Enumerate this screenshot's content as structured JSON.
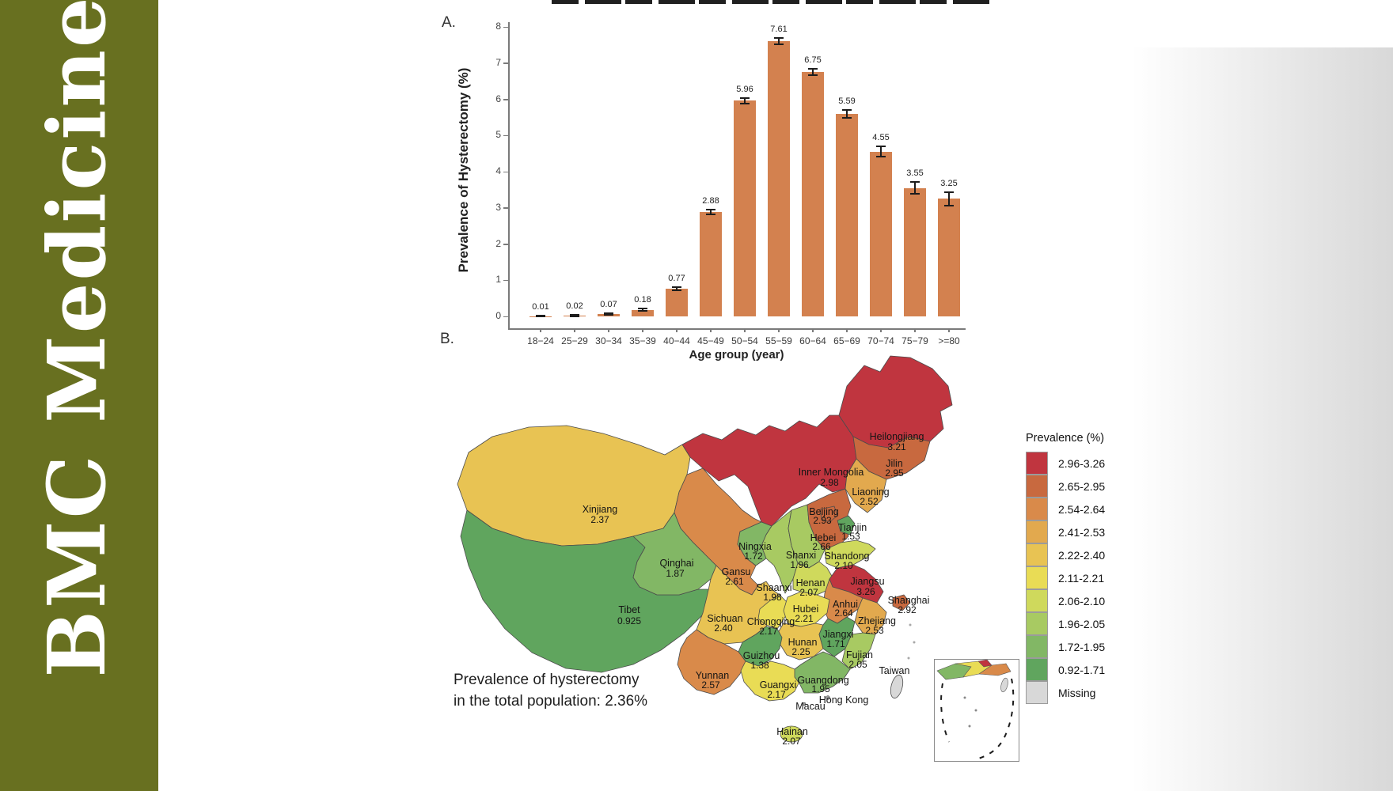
{
  "brand": {
    "name": "BMC Medicine",
    "bg_color": "#687020",
    "text_color": "#ffffff"
  },
  "figure": {
    "panel_a_label": "A.",
    "panel_b_label": "B.",
    "caption_line1": "Prevalence of hysterectomy",
    "caption_line2": "in the total population: 2.36%"
  },
  "chart_data": [
    {
      "type": "bar",
      "title": "",
      "xlabel": "Age group (year)",
      "ylabel": "Prevalence of Hysterectomy (%)",
      "ylim": [
        0,
        8
      ],
      "yticks": [
        0,
        1,
        2,
        3,
        4,
        5,
        6,
        7,
        8
      ],
      "grid": false,
      "bar_color": "#d3814f",
      "categories": [
        "18−24",
        "25−29",
        "30−34",
        "35−39",
        "40−44",
        "45−49",
        "50−54",
        "55−59",
        "60−64",
        "65−69",
        "70−74",
        "75−79",
        ">=80"
      ],
      "values": [
        0.01,
        0.02,
        0.07,
        0.18,
        0.77,
        2.88,
        5.96,
        7.61,
        6.75,
        5.59,
        4.55,
        3.55,
        3.25
      ],
      "value_labels": [
        "0.01",
        "0.02",
        "0.07",
        "0.18",
        "0.77",
        "2.88",
        "5.96",
        "7.61",
        "6.75",
        "5.59",
        "4.55",
        "3.55",
        "3.25"
      ],
      "errors": [
        0.01,
        0.015,
        0.02,
        0.03,
        0.04,
        0.06,
        0.07,
        0.09,
        0.09,
        0.11,
        0.14,
        0.16,
        0.18
      ]
    },
    {
      "type": "choropleth-map",
      "region": "China",
      "legend_title": "Prevalence (%)",
      "legend": [
        {
          "range": "2.96-3.26",
          "band": 0
        },
        {
          "range": "2.65-2.95",
          "band": 1
        },
        {
          "range": "2.54-2.64",
          "band": 2
        },
        {
          "range": "2.41-2.53",
          "band": 3
        },
        {
          "range": "2.22-2.40",
          "band": 4
        },
        {
          "range": "2.11-2.21",
          "band": 5
        },
        {
          "range": "2.06-2.10",
          "band": 6
        },
        {
          "range": "1.96-2.05",
          "band": 7
        },
        {
          "range": "1.72-1.95",
          "band": 8
        },
        {
          "range": "0.92-1.71",
          "band": 9
        },
        {
          "range": "Missing",
          "band": "missing"
        }
      ],
      "band_colors": [
        "#c0353f",
        "#c8693f",
        "#d98a4a",
        "#e2a94e",
        "#e8c353",
        "#e9dc55",
        "#cfd95c",
        "#a8ca62",
        "#82b765",
        "#60a55e"
      ],
      "missing_color": "#d8d8d8",
      "annotation": "Prevalence of hysterectomy in the total population: 2.36%",
      "provinces": [
        {
          "name": "Heilongjiang",
          "value": "3.21",
          "band": 0
        },
        {
          "name": "Jilin",
          "value": "2.95",
          "band": 1
        },
        {
          "name": "Liaoning",
          "value": "2.52",
          "band": 3
        },
        {
          "name": "Inner Mongolia",
          "value": "2.98",
          "band": 0
        },
        {
          "name": "Xinjiang",
          "value": "2.37",
          "band": 4
        },
        {
          "name": "Beijing",
          "value": "2.93",
          "band": 1
        },
        {
          "name": "Tianjin",
          "value": "1.53",
          "band": 9
        },
        {
          "name": "Hebei",
          "value": "2.66",
          "band": 1
        },
        {
          "name": "Ningxia",
          "value": "1.72",
          "band": 8
        },
        {
          "name": "Shanxi",
          "value": "1.96",
          "band": 7
        },
        {
          "name": "Shandong",
          "value": "2.10",
          "band": 6
        },
        {
          "name": "Qinghai",
          "value": "1.87",
          "band": 8
        },
        {
          "name": "Gansu",
          "value": "2.61",
          "band": 2
        },
        {
          "name": "Shaanxi",
          "value": "1.98",
          "band": 7
        },
        {
          "name": "Henan",
          "value": "2.07",
          "band": 6
        },
        {
          "name": "Jiangsu",
          "value": "3.26",
          "band": 0
        },
        {
          "name": "Anhui",
          "value": "2.64",
          "band": 2
        },
        {
          "name": "Shanghai",
          "value": "2.92",
          "band": 1
        },
        {
          "name": "Hubei",
          "value": "2.21",
          "band": 5
        },
        {
          "name": "Tibet",
          "value": "0.925",
          "band": 9
        },
        {
          "name": "Sichuan",
          "value": "2.40",
          "band": 4
        },
        {
          "name": "Chongqing",
          "value": "2.17",
          "band": 5
        },
        {
          "name": "Zhejiang",
          "value": "2.53",
          "band": 3
        },
        {
          "name": "Jiangxi",
          "value": "1.71",
          "band": 9
        },
        {
          "name": "Hunan",
          "value": "2.25",
          "band": 4
        },
        {
          "name": "Guizhou",
          "value": "1.38",
          "band": 9
        },
        {
          "name": "Fujian",
          "value": "2.05",
          "band": 7
        },
        {
          "name": "Yunnan",
          "value": "2.57",
          "band": 2
        },
        {
          "name": "Guangxi",
          "value": "2.17",
          "band": 5
        },
        {
          "name": "Guangdong",
          "value": "1.95",
          "band": 8
        },
        {
          "name": "Hainan",
          "value": "2.07",
          "band": 6
        },
        {
          "name": "Taiwan",
          "value": "",
          "band": "missing"
        },
        {
          "name": "Hong Kong",
          "value": "",
          "band": "missing"
        },
        {
          "name": "Macau",
          "value": "",
          "band": "missing"
        }
      ]
    }
  ]
}
